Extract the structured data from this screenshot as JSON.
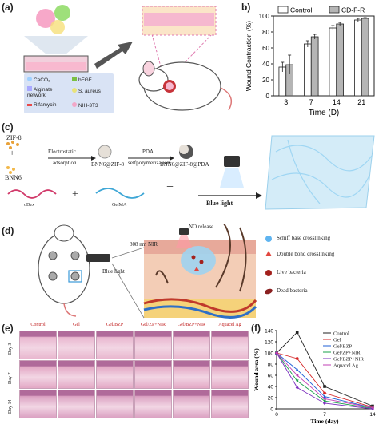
{
  "panel_labels": {
    "a": "(a)",
    "b": "b)",
    "c": "(c)",
    "d": "(d)",
    "e": "(e)",
    "f": "(f)"
  },
  "panel_a": {
    "legend": [
      {
        "label": "CaCO₃",
        "color": "#9fd0ff"
      },
      {
        "label": "bFGF",
        "color": "#7ac043"
      },
      {
        "label": "Alginate network",
        "color": "#a9a9ff"
      },
      {
        "label": "S. aureus",
        "color": "#e9e37a"
      },
      {
        "label": "Rifamycin",
        "color": "#e84a4a"
      },
      {
        "label": "NIH-3T3",
        "color": "#f2a7c8"
      }
    ]
  },
  "chart_data": {
    "type": "bar",
    "categories": [
      "3",
      "7",
      "14",
      "21"
    ],
    "series": [
      {
        "name": "Control",
        "values": [
          36,
          65,
          85,
          95
        ],
        "errors": [
          6,
          4,
          3,
          2
        ]
      },
      {
        "name": "CD-F-R",
        "values": [
          39,
          74,
          90,
          97
        ],
        "errors": [
          12,
          3,
          2,
          1
        ]
      }
    ],
    "xlabel": "Time (D)",
    "ylabel": "Wound Contraction (%)",
    "ylim": [
      0,
      100
    ],
    "yticks": [
      "0",
      "20",
      "40",
      "60",
      "80",
      "100"
    ],
    "legend_position": "top"
  },
  "panel_c": {
    "zif8": "ZIF-8",
    "plus1": "+",
    "bnn6": "BNN6",
    "step1_top": "Electrostatic",
    "step1_bottom": "adsorption",
    "product1": "BNN6@ZIF-8",
    "step2_top": "PDA",
    "step2_bottom": "selfpolymerization",
    "product2": "BNN6@ZIF-8@PDA",
    "odex": "oDex",
    "plus2": "+",
    "gelma": "GelMA",
    "plus3": "+",
    "blue_light": "Blue light"
  },
  "panel_d": {
    "nir": "808 nm NIR",
    "no_release": "NO release",
    "blue_light": "Blue light",
    "legend": [
      {
        "label": "Schiff base crosslinking",
        "color": "#5fb4f0"
      },
      {
        "label": "Double bond crosslinking",
        "color": "#e2463f"
      },
      {
        "label": "Live bacteria",
        "color": "#a3201c"
      },
      {
        "label": "Dead bacteria",
        "color": "#8a2020"
      }
    ]
  },
  "panel_e": {
    "columns": [
      "Control",
      "Gel",
      "Gel/BZP",
      "Gel/ZP+NIR",
      "Gel/BZP+NIR",
      "Aquacel Ag"
    ],
    "rows": [
      "Day 3",
      "Day 7",
      "Day 14"
    ],
    "column_colors": [
      "#c01f1f",
      "#c01f1f",
      "#c01f1f",
      "#c01f1f",
      "#c01f1f",
      "#c01f1f"
    ]
  },
  "chart_data_f": {
    "type": "line",
    "x": [
      0,
      3,
      7,
      14
    ],
    "xticks": [
      "0",
      "7",
      "14"
    ],
    "xlabel": "Time (day)",
    "ylabel": "Wound area (%)",
    "ylim": [
      0,
      140
    ],
    "yticks": [
      "0",
      "20",
      "40",
      "60",
      "80",
      "100",
      "120",
      "140"
    ],
    "series": [
      {
        "name": "Control",
        "color": "#222222",
        "marker": "square",
        "values": [
          100,
          137,
          40,
          5
        ]
      },
      {
        "name": "Gel",
        "color": "#d62728",
        "marker": "circle",
        "values": [
          100,
          90,
          28,
          3
        ]
      },
      {
        "name": "Gel/BZP",
        "color": "#1f5fd6",
        "marker": "triangle",
        "values": [
          100,
          70,
          22,
          2
        ]
      },
      {
        "name": "Gel/ZP+NIR",
        "color": "#1aa14a",
        "marker": "triangle-down",
        "values": [
          100,
          50,
          14,
          1
        ]
      },
      {
        "name": "Gel/BZP+NIR",
        "color": "#7b2fbe",
        "marker": "diamond",
        "values": [
          100,
          38,
          10,
          0
        ]
      },
      {
        "name": "Aquacel Ag",
        "color": "#c23fb5",
        "marker": "triangle-left",
        "values": [
          100,
          60,
          18,
          2
        ]
      }
    ]
  }
}
